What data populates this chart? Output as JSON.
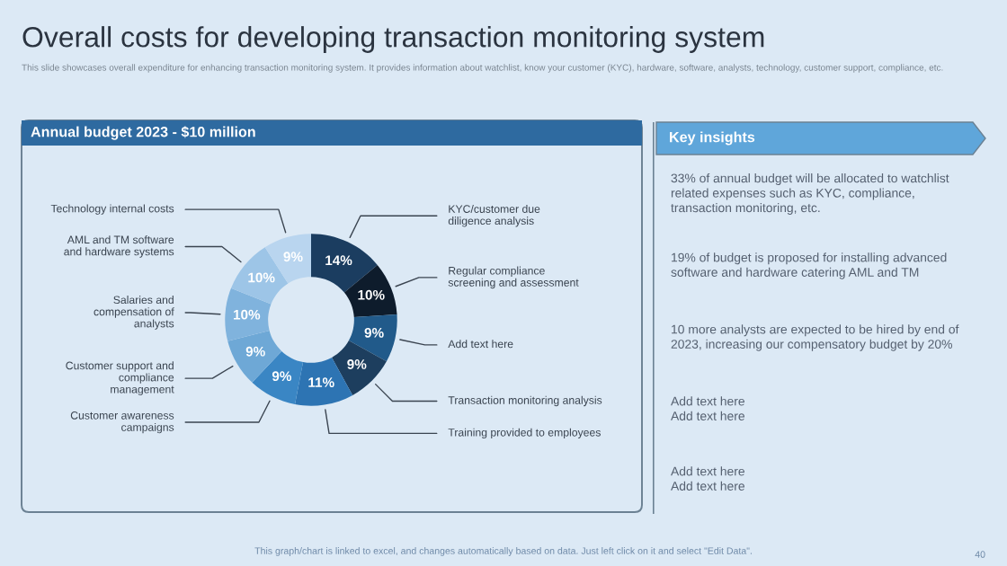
{
  "chart_data": {
    "type": "donut",
    "title": "Overall costs for developing transaction monitoring system",
    "subtitle": "This slide showcases overall expenditure for enhancing transaction monitoring system. It provides information about watchlist, know your customer (KYC), hardware, software, analysts, technology, customer support, compliance, etc.",
    "categories": [
      "KYC/customer due\ndiligence analysis",
      "Regular compliance\nscreening and assessment",
      "Add text here",
      "Transaction monitoring analysis",
      "Training provided to employees",
      "Customer awareness\ncampaigns",
      "Customer support and\ncompliance\nmanagement",
      "Salaries and\ncompensation of\nanalysts",
      "AML and TM software\nand hardware systems",
      "Technology internal costs"
    ],
    "values": [
      14,
      10,
      9,
      9,
      11,
      9,
      9,
      10,
      10,
      9
    ],
    "colors": [
      "#1b3d60",
      "#0e1c2c",
      "#215a8a",
      "#1d3e5e",
      "#2d74b3",
      "#3a86c4",
      "#6ea8d6",
      "#80b3dd",
      "#9dc5e7",
      "#b9d5ef"
    ],
    "value_labels": [
      "14%",
      "10%",
      "9%",
      "9%",
      "11%",
      "9%",
      "9%",
      "10%",
      "10%",
      "9%"
    ],
    "annotations": [
      "Annual budget 2023 - $10 million",
      "Key insights",
      "33% of annual budget will be allocated to watchlist\nrelated expenses such as KYC, compliance,\ntransaction monitoring, etc.",
      "19% of budget is proposed for installing advanced\nsoftware and hardware catering AML and TM",
      "10 more analysts are expected to be hired by end of\n2023, increasing our compensatory budget by 20%",
      "Add text here\nAdd text here",
      "Add text here\nAdd text here",
      "This graph/chart is linked to excel, and changes automatically based on data. Just left click on it and select \"Edit Data\".",
      "40"
    ]
  }
}
